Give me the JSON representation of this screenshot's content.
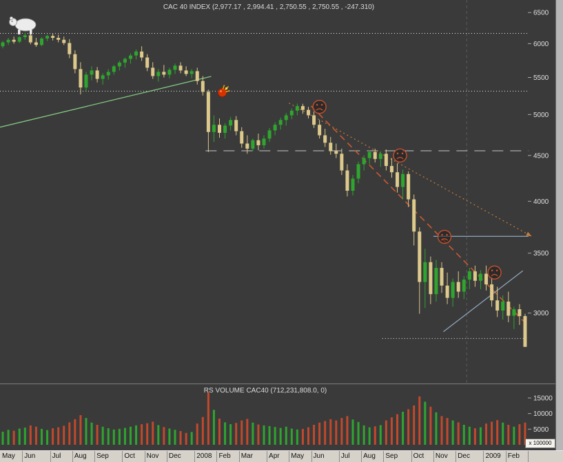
{
  "chart_data": {
    "type": "candlestick",
    "title": "CAC 40 INDEX (2,977.17 , 2,994.41 , 2,750.55 , 2,750.55 , -247.310)",
    "volume_title": "RS VOLUME CAC40 (712,231,808.0, 0)",
    "volume_scale_label": "x 100000",
    "last_quote": {
      "open": 2977.17,
      "high": 2994.41,
      "low": 2750.55,
      "close": 2750.55,
      "change": -247.31
    },
    "price_scale": {
      "type": "log",
      "min": 2503,
      "max": 6713
    },
    "price_ticks": [
      6500,
      6000,
      5500,
      5000,
      4500,
      4000,
      3500,
      3000
    ],
    "volume_ticks": [
      15000,
      10000,
      5000
    ],
    "months": [
      "May",
      "Jun",
      "Jul",
      "Aug",
      "Sep",
      "Oct",
      "Nov",
      "Dec",
      "2008",
      "Feb",
      "Mar",
      "Apr",
      "May",
      "Jun",
      "Jul",
      "Aug",
      "Sep",
      "Oct",
      "Nov",
      "Dec",
      "2009",
      "Feb"
    ],
    "month_weeks": [
      4,
      5,
      4,
      4,
      5,
      4,
      4,
      5,
      4,
      4,
      5,
      4,
      4,
      5,
      4,
      4,
      5,
      4,
      4,
      5,
      4,
      4
    ],
    "candles": [
      [
        5960,
        6040,
        5930,
        6020
      ],
      [
        6020,
        6090,
        5980,
        6060
      ],
      [
        6060,
        6110,
        6000,
        6030
      ],
      [
        6030,
        6120,
        6010,
        6100
      ],
      [
        6100,
        6168,
        6060,
        6130
      ],
      [
        6130,
        6160,
        5990,
        6020
      ],
      [
        6020,
        6090,
        5950,
        5980
      ],
      [
        5980,
        6100,
        5960,
        6080
      ],
      [
        6080,
        6140,
        6040,
        6120
      ],
      [
        6120,
        6160,
        6050,
        6090
      ],
      [
        6090,
        6140,
        6020,
        6060
      ],
      [
        6060,
        6110,
        5980,
        6010
      ],
      [
        6010,
        6070,
        5780,
        5840
      ],
      [
        5840,
        5900,
        5560,
        5620
      ],
      [
        5620,
        5720,
        5265,
        5360
      ],
      [
        5360,
        5580,
        5300,
        5540
      ],
      [
        5540,
        5660,
        5460,
        5600
      ],
      [
        5600,
        5650,
        5430,
        5480
      ],
      [
        5480,
        5560,
        5400,
        5530
      ],
      [
        5530,
        5620,
        5470,
        5580
      ],
      [
        5580,
        5680,
        5540,
        5660
      ],
      [
        5660,
        5740,
        5600,
        5715
      ],
      [
        5715,
        5790,
        5640,
        5770
      ],
      [
        5770,
        5850,
        5700,
        5820
      ],
      [
        5820,
        5910,
        5760,
        5880
      ],
      [
        5880,
        5960,
        5740,
        5790
      ],
      [
        5790,
        5840,
        5590,
        5640
      ],
      [
        5640,
        5720,
        5480,
        5520
      ],
      [
        5520,
        5620,
        5440,
        5580
      ],
      [
        5580,
        5680,
        5500,
        5540
      ],
      [
        5540,
        5640,
        5490,
        5610
      ],
      [
        5610,
        5700,
        5550,
        5670
      ],
      [
        5670,
        5720,
        5560,
        5600
      ],
      [
        5600,
        5660,
        5520,
        5550
      ],
      [
        5550,
        5620,
        5490,
        5590
      ],
      [
        5590,
        5640,
        5400,
        5450
      ],
      [
        5450,
        5520,
        5250,
        5300
      ],
      [
        5300,
        5330,
        4540,
        4780
      ],
      [
        4780,
        4990,
        4660,
        4870
      ],
      [
        4870,
        4950,
        4710,
        4770
      ],
      [
        4770,
        4890,
        4700,
        4860
      ],
      [
        4860,
        4970,
        4800,
        4930
      ],
      [
        4930,
        4980,
        4740,
        4790
      ],
      [
        4790,
        4840,
        4590,
        4640
      ],
      [
        4640,
        4740,
        4520,
        4580
      ],
      [
        4580,
        4700,
        4550,
        4680
      ],
      [
        4680,
        4760,
        4560,
        4620
      ],
      [
        4620,
        4740,
        4580,
        4700
      ],
      [
        4700,
        4830,
        4660,
        4800
      ],
      [
        4800,
        4900,
        4740,
        4870
      ],
      [
        4870,
        4960,
        4810,
        4930
      ],
      [
        4930,
        5020,
        4860,
        4990
      ],
      [
        4990,
        5080,
        4940,
        5050
      ],
      [
        5050,
        5142,
        4990,
        5110
      ],
      [
        5110,
        5140,
        5010,
        5060
      ],
      [
        5060,
        5100,
        4950,
        4990
      ],
      [
        4990,
        5040,
        4830,
        4870
      ],
      [
        4870,
        4930,
        4700,
        4740
      ],
      [
        4740,
        4820,
        4600,
        4650
      ],
      [
        4650,
        4720,
        4510,
        4550
      ],
      [
        4550,
        4640,
        4470,
        4520
      ],
      [
        4520,
        4580,
        4280,
        4330
      ],
      [
        4330,
        4400,
        4050,
        4110
      ],
      [
        4110,
        4280,
        4060,
        4240
      ],
      [
        4240,
        4430,
        4190,
        4400
      ],
      [
        4400,
        4500,
        4330,
        4470
      ],
      [
        4470,
        4560,
        4400,
        4540
      ],
      [
        4540,
        4580,
        4420,
        4460
      ],
      [
        4460,
        4550,
        4370,
        4520
      ],
      [
        4520,
        4570,
        4330,
        4380
      ],
      [
        4380,
        4470,
        4250,
        4310
      ],
      [
        4310,
        4410,
        4090,
        4150
      ],
      [
        4150,
        4340,
        4020,
        4290
      ],
      [
        4290,
        4320,
        3940,
        4020
      ],
      [
        4020,
        4070,
        3570,
        3700
      ],
      [
        3700,
        3740,
        2995,
        3250
      ],
      [
        3250,
        3540,
        3040,
        3420
      ],
      [
        3420,
        3470,
        3070,
        3150
      ],
      [
        3150,
        3440,
        3090,
        3370
      ],
      [
        3370,
        3420,
        3160,
        3220
      ],
      [
        3220,
        3330,
        3070,
        3120
      ],
      [
        3120,
        3280,
        3050,
        3250
      ],
      [
        3250,
        3340,
        3120,
        3170
      ],
      [
        3170,
        3300,
        3110,
        3270
      ],
      [
        3270,
        3370,
        3190,
        3340
      ],
      [
        3340,
        3390,
        3210,
        3260
      ],
      [
        3260,
        3350,
        3190,
        3320
      ],
      [
        3320,
        3390,
        3180,
        3230
      ],
      [
        3230,
        3290,
        3050,
        3100
      ],
      [
        3100,
        3210,
        2970,
        3020
      ],
      [
        3020,
        3140,
        2950,
        3090
      ],
      [
        3090,
        3170,
        2930,
        2980
      ],
      [
        2980,
        3050,
        2880,
        3030
      ],
      [
        3030,
        3070,
        2910,
        2977
      ],
      [
        2977.17,
        2994.41,
        2750.55,
        2750.55
      ]
    ],
    "volumes": [
      4200,
      4800,
      4500,
      5200,
      5500,
      6200,
      5800,
      5100,
      4700,
      5300,
      5600,
      6100,
      7200,
      8200,
      9500,
      8600,
      7100,
      6400,
      5800,
      5300,
      4900,
      5100,
      5400,
      5800,
      6200,
      6600,
      6900,
      7400,
      6300,
      5700,
      5200,
      4800,
      4400,
      3800,
      4100,
      6800,
      8900,
      16800,
      11200,
      8400,
      7200,
      6600,
      7000,
      7800,
      8300,
      7100,
      6500,
      6200,
      6000,
      5700,
      5400,
      5800,
      5200,
      4900,
      5100,
      5600,
      6400,
      7100,
      7600,
      8200,
      7800,
      8600,
      9200,
      8100,
      7300,
      6200,
      5600,
      5900,
      6300,
      7800,
      8800,
      9800,
      10600,
      11400,
      12600,
      15500,
      13800,
      12200,
      10400,
      9200,
      8600,
      7800,
      7200,
      6400,
      5800,
      5300,
      5600,
      6800,
      7400,
      7900,
      7100,
      6400,
      5800,
      6600,
      7122
    ],
    "colors": {
      "up": "#2fa52f",
      "down": "#dcc98b",
      "volume_up": "#2fa52f",
      "volume_down": "#c2492c",
      "axis_text": "#e0e0e0",
      "line_green": "#82c882",
      "line_orange_dotted": "#c77e3c",
      "line_orange_dashed": "#cd5a2e",
      "line_blue": "#93a9bf",
      "level_white": "#f0f0f0",
      "level_gray": "#c8c8c8"
    },
    "levels": [
      {
        "price": 6160,
        "from_week": -0.5,
        "to_week": 94.6,
        "dash": "1 3",
        "color": "#f0f0f0"
      },
      {
        "price": 5310,
        "from_week": -0.5,
        "to_week": 94.6,
        "dash": "1 3",
        "color": "#f0f0f0"
      },
      {
        "price": 4555,
        "from_week": 36.5,
        "to_week": 94.6,
        "dash": "16 10",
        "color": "#c8c8c8"
      },
      {
        "price": 2810,
        "from_week": 68.3,
        "to_week": 94.6,
        "dash": "1 3",
        "color": "#f0f0f0"
      }
    ],
    "trendlines": [
      {
        "from": {
          "week": -0.5,
          "price": 4840
        },
        "to": {
          "week": 37.5,
          "price": 5515
        },
        "color": "#82c882",
        "dash": "",
        "width": 1.3,
        "arrow": false
      },
      {
        "from": {
          "week": 51.5,
          "price": 5150
        },
        "to": {
          "week": 95.2,
          "price": 3655
        },
        "color": "#c77e3c",
        "dash": "2 4",
        "width": 1.2,
        "arrow": true
      },
      {
        "from": {
          "week": 55.5,
          "price": 5110
        },
        "to": {
          "week": 93.8,
          "price": 2935
        },
        "color": "#cd5a2e",
        "dash": "9 6",
        "width": 1.6,
        "arrow": false
      },
      {
        "from": {
          "week": 77.5,
          "price": 3655
        },
        "to": {
          "week": 94.6,
          "price": 3655
        },
        "color": "#93a9bf",
        "dash": "",
        "width": 1.2,
        "arrow": false
      },
      {
        "from": {
          "week": 79.3,
          "price": 2860
        },
        "to": {
          "week": 93.6,
          "price": 3345
        },
        "color": "#93a9bf",
        "dash": "",
        "width": 1.2,
        "arrow": false
      }
    ],
    "vline_week": 83.5,
    "annotations": {
      "bomb": {
        "week": 39.5,
        "price": 5290
      },
      "sad_faces": [
        {
          "week": 57,
          "price": 5100
        },
        {
          "week": 71.5,
          "price": 4500
        },
        {
          "week": 79.5,
          "price": 3650
        },
        {
          "week": 88.5,
          "price": 3330
        }
      ],
      "bear": true
    }
  }
}
